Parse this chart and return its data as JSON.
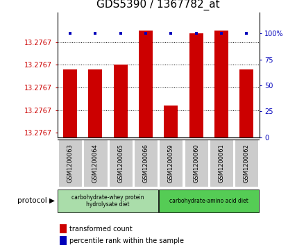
{
  "title": "GDS5390 / 1367782_at",
  "samples": [
    "GSM1200063",
    "GSM1200064",
    "GSM1200065",
    "GSM1200066",
    "GSM1200059",
    "GSM1200060",
    "GSM1200061",
    "GSM1200062"
  ],
  "bar_top_values": [
    13.35,
    13.35,
    13.37,
    13.52,
    13.19,
    13.51,
    13.52,
    13.35
  ],
  "percentile_values": [
    100,
    100,
    100,
    100,
    100,
    100,
    100,
    100
  ],
  "y_min": 13.05,
  "y_max": 13.6,
  "ytick_positions": [
    13.07,
    13.17,
    13.27,
    13.37,
    13.47
  ],
  "ytick_label": "13.2767",
  "grid_lines": [
    13.17,
    13.27,
    13.37,
    13.47
  ],
  "bar_color": "#cc0000",
  "percentile_color": "#0000bb",
  "right_yticks": [
    0,
    25,
    50,
    75,
    100
  ],
  "right_yticklabels": [
    "0",
    "25",
    "50",
    "75",
    "100%"
  ],
  "right_ylim": [
    0,
    120
  ],
  "group1_label": "carbohydrate-whey protein\nhydrolysate diet",
  "group2_label": "carbohydrate-amino acid diet",
  "group1_color": "#aaddaa",
  "group2_color": "#55cc55",
  "sample_box_color": "#cccccc",
  "protocol_label": "protocol",
  "legend_bar_label": "transformed count",
  "legend_dot_label": "percentile rank within the sample",
  "title_fontsize": 11,
  "tick_fontsize": 7,
  "sample_fontsize": 6,
  "legend_fontsize": 7,
  "bar_width": 0.55
}
